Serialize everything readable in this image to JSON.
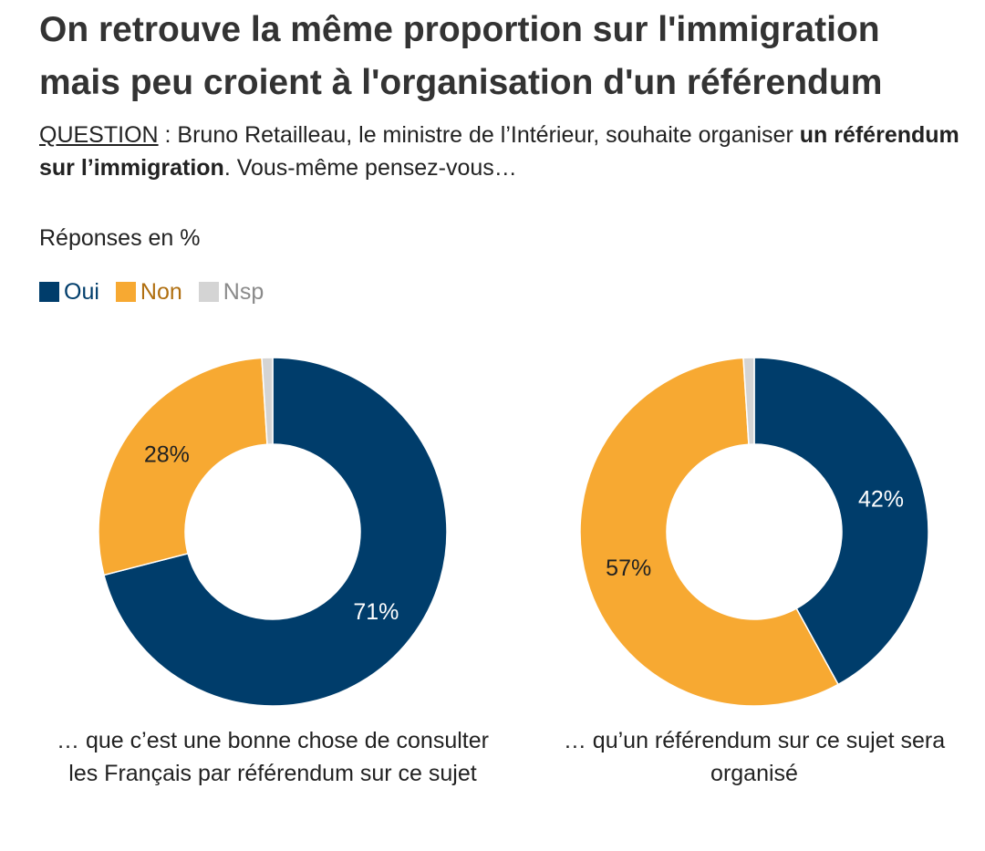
{
  "header": {
    "title": "On retrouve la même proportion sur l'immigration mais peu croient à l'organisation d'un référendum",
    "question_label": "QUESTION",
    "question_sep": " : ",
    "question_part1": "Bruno Retailleau, le ministre de l’Intérieur, souhaite organiser ",
    "question_bold": "un référendum sur l’immigration",
    "question_part2": ". Vous-même pensez-vous…",
    "subtitle": "Réponses en %"
  },
  "legend": [
    {
      "label": "Oui",
      "color": "#003d6b"
    },
    {
      "label": "Non",
      "color": "#f7a932"
    },
    {
      "label": "Nsp",
      "color": "#d4d4d4"
    }
  ],
  "colors": {
    "oui": "#003d6b",
    "non": "#f7a932",
    "nsp": "#d4d4d4",
    "non_text": "#b06f10",
    "nsp_text": "#8a8a8a"
  },
  "chart_data": [
    {
      "type": "pie",
      "donut": true,
      "categories": [
        "Oui",
        "Non",
        "Nsp"
      ],
      "values": [
        71,
        28,
        1
      ],
      "labels": [
        "71%",
        "28%",
        ""
      ],
      "caption": "… que c’est une bonne chose de consulter les Français par référendum sur ce sujet"
    },
    {
      "type": "pie",
      "donut": true,
      "categories": [
        "Oui",
        "Non",
        "Nsp"
      ],
      "values": [
        42,
        57,
        1
      ],
      "labels": [
        "42%",
        "57%",
        ""
      ],
      "caption": "… qu’un référendum sur ce sujet sera organisé"
    }
  ]
}
